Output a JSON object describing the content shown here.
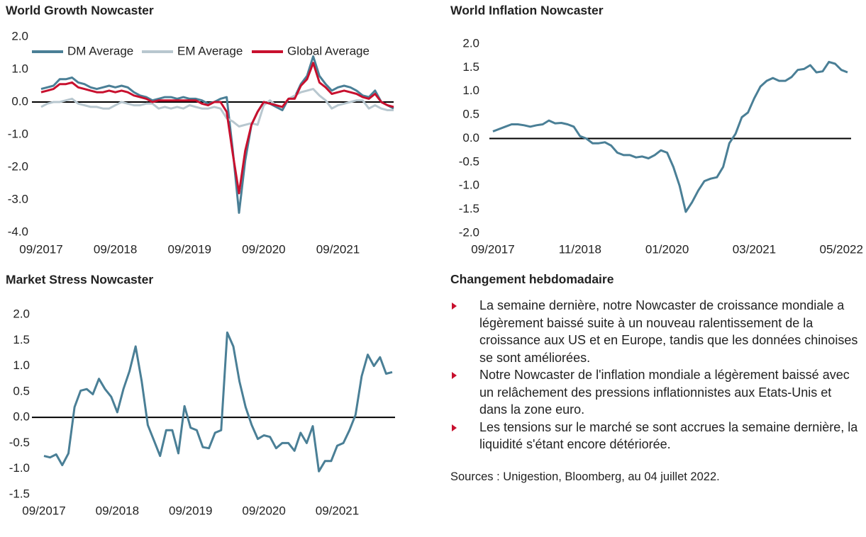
{
  "chart_data": [
    {
      "type": "line",
      "title": "World Growth Nowcaster",
      "categories": [
        "09/2017",
        null,
        null,
        null,
        null,
        null,
        null,
        null,
        null,
        null,
        null,
        null,
        "09/2018",
        null,
        null,
        null,
        null,
        null,
        null,
        null,
        null,
        null,
        null,
        null,
        "09/2019",
        null,
        null,
        null,
        null,
        null,
        null,
        null,
        null,
        null,
        null,
        null,
        "09/2020",
        null,
        null,
        null,
        null,
        null,
        null,
        null,
        null,
        null,
        null,
        null,
        "09/2021",
        null,
        null,
        null,
        null,
        null,
        null,
        null,
        null,
        null
      ],
      "series": [
        {
          "name": "DM Average",
          "color": "#4a7f96",
          "values": [
            0.4,
            0.45,
            0.5,
            0.7,
            0.7,
            0.75,
            0.6,
            0.55,
            0.45,
            0.4,
            0.45,
            0.5,
            0.45,
            0.5,
            0.45,
            0.3,
            0.2,
            0.15,
            0.05,
            0.1,
            0.15,
            0.15,
            0.1,
            0.15,
            0.1,
            0.1,
            0.05,
            -0.05,
            0.0,
            0.1,
            0.15,
            -1.5,
            -3.4,
            -1.8,
            -0.7,
            -0.3,
            0.0,
            -0.05,
            -0.15,
            -0.25,
            0.1,
            0.15,
            0.55,
            0.8,
            1.4,
            0.8,
            0.55,
            0.35,
            0.45,
            0.5,
            0.45,
            0.35,
            0.2,
            0.15,
            0.35,
            0.0,
            -0.1,
            -0.2
          ]
        },
        {
          "name": "EM Average",
          "color": "#b8c7cf",
          "values": [
            -0.15,
            -0.05,
            0.0,
            0.0,
            0.05,
            0.1,
            -0.05,
            -0.1,
            -0.15,
            -0.15,
            -0.2,
            -0.2,
            -0.1,
            0.0,
            -0.05,
            -0.1,
            -0.1,
            -0.05,
            -0.05,
            -0.2,
            -0.15,
            -0.2,
            -0.15,
            -0.2,
            -0.1,
            -0.15,
            -0.2,
            -0.2,
            -0.15,
            -0.2,
            -0.5,
            -0.6,
            -0.75,
            -0.7,
            -0.65,
            -0.7,
            -0.1,
            0.05,
            -0.1,
            -0.15,
            0.1,
            0.2,
            0.3,
            0.35,
            0.4,
            0.2,
            0.05,
            -0.2,
            -0.1,
            -0.05,
            0.0,
            0.05,
            0.05,
            -0.2,
            -0.1,
            -0.2,
            -0.25,
            -0.25
          ]
        },
        {
          "name": "Global Average",
          "color": "#c8102e",
          "values": [
            0.3,
            0.35,
            0.4,
            0.55,
            0.55,
            0.6,
            0.45,
            0.4,
            0.35,
            0.3,
            0.3,
            0.35,
            0.3,
            0.35,
            0.3,
            0.2,
            0.15,
            0.1,
            0.0,
            0.05,
            0.05,
            0.05,
            0.05,
            0.05,
            0.05,
            0.05,
            -0.05,
            -0.1,
            0.0,
            0.0,
            -0.3,
            -1.6,
            -2.8,
            -1.5,
            -0.7,
            -0.3,
            0.0,
            -0.05,
            -0.1,
            -0.15,
            0.1,
            0.1,
            0.5,
            0.7,
            1.2,
            0.6,
            0.45,
            0.25,
            0.3,
            0.35,
            0.3,
            0.25,
            0.15,
            0.1,
            0.25,
            0.0,
            -0.1,
            -0.15
          ]
        }
      ],
      "ylim": [
        -4,
        2
      ],
      "yticks": [
        {
          "value": 2,
          "label": "2.0"
        },
        {
          "value": 1,
          "label": "1.0"
        },
        {
          "value": 0,
          "label": "0.0"
        },
        {
          "value": -1,
          "label": "-1.0"
        },
        {
          "value": -2,
          "label": "-2.0"
        },
        {
          "value": -3,
          "label": "-3.0"
        },
        {
          "value": -4,
          "label": "-4.0"
        }
      ]
    },
    {
      "type": "line",
      "title": "World Inflation Nowcaster",
      "categories": [
        "09/2017",
        null,
        null,
        null,
        null,
        null,
        null,
        null,
        null,
        null,
        null,
        null,
        null,
        null,
        "11/2018",
        null,
        null,
        null,
        null,
        null,
        null,
        null,
        null,
        null,
        null,
        null,
        null,
        null,
        "01/2020",
        null,
        null,
        null,
        null,
        null,
        null,
        null,
        null,
        null,
        null,
        null,
        null,
        null,
        "03/2021",
        null,
        null,
        null,
        null,
        null,
        null,
        null,
        null,
        null,
        null,
        null,
        null,
        null,
        "05/2022",
        null
      ],
      "color": "#4a7f96",
      "values": [
        0.15,
        0.2,
        0.25,
        0.3,
        0.3,
        0.28,
        0.25,
        0.28,
        0.3,
        0.38,
        0.32,
        0.33,
        0.3,
        0.25,
        0.05,
        0.0,
        -0.1,
        -0.1,
        -0.08,
        -0.15,
        -0.3,
        -0.35,
        -0.35,
        -0.4,
        -0.38,
        -0.42,
        -0.35,
        -0.25,
        -0.3,
        -0.6,
        -1.0,
        -1.55,
        -1.35,
        -1.1,
        -0.9,
        -0.85,
        -0.82,
        -0.6,
        -0.1,
        0.1,
        0.45,
        0.55,
        0.85,
        1.1,
        1.22,
        1.28,
        1.22,
        1.22,
        1.3,
        1.45,
        1.47,
        1.55,
        1.4,
        1.42,
        1.62,
        1.58,
        1.45,
        1.4
      ],
      "ylim": [
        -2,
        2
      ],
      "yticks": [
        {
          "value": 2,
          "label": "2.0"
        },
        1.5,
        {
          "value": 1,
          "label": "1.0"
        },
        0.5,
        {
          "value": 0,
          "label": "0.0"
        },
        -0.5,
        {
          "value": -1,
          "label": "-1.0"
        },
        -1.5,
        {
          "value": -2,
          "label": "-2.0"
        }
      ]
    },
    {
      "type": "line",
      "title": "Market Stress Nowcaster",
      "categories": [
        "09/2017",
        null,
        null,
        null,
        null,
        null,
        null,
        null,
        null,
        null,
        null,
        null,
        "09/2018",
        null,
        null,
        null,
        null,
        null,
        null,
        null,
        null,
        null,
        null,
        null,
        "09/2019",
        null,
        null,
        null,
        null,
        null,
        null,
        null,
        null,
        null,
        null,
        null,
        "09/2020",
        null,
        null,
        null,
        null,
        null,
        null,
        null,
        null,
        null,
        null,
        null,
        "09/2021",
        null,
        null,
        null,
        null,
        null,
        null,
        null,
        null,
        null
      ],
      "color": "#4a7f96",
      "values": [
        -0.75,
        -0.78,
        -0.72,
        -0.93,
        -0.7,
        0.2,
        0.52,
        0.55,
        0.45,
        0.75,
        0.55,
        0.4,
        0.1,
        0.55,
        0.9,
        1.38,
        0.7,
        -0.15,
        -0.45,
        -0.75,
        -0.25,
        -0.25,
        -0.7,
        0.22,
        -0.2,
        -0.25,
        -0.58,
        -0.6,
        -0.3,
        -0.25,
        1.65,
        1.38,
        0.7,
        0.2,
        -0.15,
        -0.42,
        -0.35,
        -0.38,
        -0.6,
        -0.5,
        -0.5,
        -0.65,
        -0.3,
        -0.5,
        -0.17,
        -1.05,
        -0.85,
        -0.85,
        -0.55,
        -0.5,
        -0.25,
        0.05,
        0.8,
        1.22,
        1.0,
        1.17,
        0.85,
        0.88
      ],
      "ylim": [
        -1.5,
        2
      ],
      "yticks": [
        {
          "value": 2,
          "label": "2.0"
        },
        1.5,
        {
          "value": 1,
          "label": "1.0"
        },
        0.5,
        {
          "value": 0,
          "label": "0.0"
        },
        -0.5,
        {
          "value": -1,
          "label": "-1.0"
        },
        -1.5
      ]
    }
  ],
  "panel": {
    "title": "Changement hebdomadaire",
    "bullets": [
      "La semaine dernière, notre Nowcaster de croissance mondiale a légèrement baissé suite à un nouveau ralentissement de la croissance aux US et en Europe, tandis que les données chinoises se sont améliorées.",
      "Notre Nowcaster de l'inflation mondiale a légèrement baissé avec un relâchement des pressions inflationnistes aux Etats-Unis et dans la zone euro.",
      "Les tensions sur le marché se sont accrues la semaine dernière, la liquidité s'étant encore détériorée."
    ],
    "source": "Sources : Unigestion, Bloomberg, au 04 juillet 2022."
  }
}
